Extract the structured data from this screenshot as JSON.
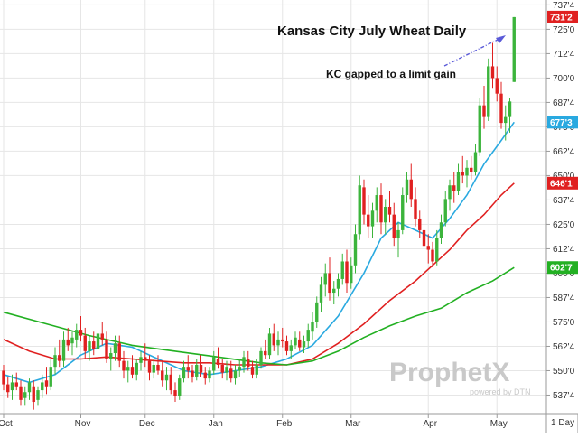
{
  "chart_data": {
    "type": "candlestick",
    "title": "Kansas City July Wheat Daily",
    "annotation": "KC gapped to a limit gain",
    "interval_label": "1 Day",
    "brand": {
      "name": "ProphetX",
      "sub": "powered by DTN"
    },
    "y_range": [
      528,
      740
    ],
    "y_ticks": [
      {
        "value": 737.5,
        "label": "737'4"
      },
      {
        "value": 725.0,
        "label": "725'0"
      },
      {
        "value": 712.5,
        "label": "712'4"
      },
      {
        "value": 700.0,
        "label": "700'0"
      },
      {
        "value": 687.5,
        "label": "687'4"
      },
      {
        "value": 675.0,
        "label": "675'0"
      },
      {
        "value": 662.5,
        "label": "662'4"
      },
      {
        "value": 650.0,
        "label": "650'0"
      },
      {
        "value": 637.5,
        "label": "637'4"
      },
      {
        "value": 625.0,
        "label": "625'0"
      },
      {
        "value": 612.5,
        "label": "612'4"
      },
      {
        "value": 600.0,
        "label": "600'0"
      },
      {
        "value": 587.5,
        "label": "587'4"
      },
      {
        "value": 575.0,
        "label": "575'0"
      },
      {
        "value": 562.5,
        "label": "562'4"
      },
      {
        "value": 550.0,
        "label": "550'0"
      },
      {
        "value": 537.5,
        "label": "537'4"
      }
    ],
    "month_ticks": [
      {
        "label": "Oct",
        "bar": 0
      },
      {
        "label": "Nov",
        "bar": 18
      },
      {
        "label": "Dec",
        "bar": 33
      },
      {
        "label": "Jan",
        "bar": 49
      },
      {
        "label": "Feb",
        "bar": 65
      },
      {
        "label": "Mar",
        "bar": 81
      },
      {
        "label": "Apr",
        "bar": 99
      },
      {
        "label": "May",
        "bar": 115
      }
    ],
    "price_tags": [
      {
        "label": "731'2",
        "value": 731.25,
        "color": "#e02020"
      },
      {
        "label": "677'3",
        "value": 677.375,
        "color": "#29a9e0"
      },
      {
        "label": "646'1",
        "value": 646.125,
        "color": "#e02020"
      },
      {
        "label": "602'7",
        "value": 602.875,
        "color": "#22b022"
      }
    ],
    "colors": {
      "up": "#3cb43c",
      "down": "#e02020",
      "ma_fast": "#29a9e0",
      "ma_mid": "#e02020",
      "ma_slow": "#22b022",
      "grid": "#e6e6e6"
    },
    "series": [
      {
        "name": "Daily OHLC",
        "type": "candlestick",
        "values": [
          [
            550,
            553,
            540,
            543
          ],
          [
            543,
            547,
            536,
            539
          ],
          [
            540,
            548,
            535,
            544
          ],
          [
            544,
            549,
            540,
            542
          ],
          [
            542,
            545,
            532,
            535
          ],
          [
            536,
            542,
            532,
            539
          ],
          [
            539,
            546,
            535,
            544
          ],
          [
            542,
            545,
            530,
            534
          ],
          [
            535,
            542,
            532,
            540
          ],
          [
            540,
            548,
            536,
            544
          ],
          [
            545,
            552,
            538,
            542
          ],
          [
            542,
            556,
            540,
            552
          ],
          [
            552,
            562,
            548,
            558
          ],
          [
            558,
            566,
            552,
            555
          ],
          [
            555,
            570,
            552,
            566
          ],
          [
            566,
            572,
            560,
            563
          ],
          [
            564,
            570,
            558,
            567
          ],
          [
            566,
            574,
            562,
            571
          ],
          [
            571,
            578,
            565,
            568
          ],
          [
            568,
            572,
            556,
            560
          ],
          [
            560,
            568,
            555,
            565
          ],
          [
            565,
            570,
            558,
            561
          ],
          [
            561,
            572,
            558,
            569
          ],
          [
            569,
            575,
            563,
            566
          ],
          [
            566,
            570,
            554,
            556
          ],
          [
            556,
            562,
            550,
            559
          ],
          [
            559,
            568,
            555,
            564
          ],
          [
            564,
            568,
            552,
            555
          ],
          [
            555,
            560,
            546,
            550
          ],
          [
            550,
            555,
            544,
            552
          ],
          [
            552,
            558,
            546,
            548
          ],
          [
            548,
            556,
            545,
            554
          ],
          [
            554,
            560,
            550,
            557
          ],
          [
            557,
            564,
            552,
            555
          ],
          [
            555,
            558,
            545,
            549
          ],
          [
            549,
            556,
            546,
            553
          ],
          [
            553,
            558,
            548,
            550
          ],
          [
            550,
            555,
            542,
            545
          ],
          [
            545,
            552,
            540,
            548
          ],
          [
            548,
            552,
            538,
            540
          ],
          [
            540,
            544,
            534,
            537
          ],
          [
            537,
            548,
            535,
            546
          ],
          [
            546,
            555,
            544,
            552
          ],
          [
            552,
            558,
            546,
            550
          ],
          [
            550,
            553,
            544,
            547
          ],
          [
            547,
            556,
            545,
            553
          ],
          [
            553,
            558,
            547,
            549
          ],
          [
            549,
            552,
            543,
            546
          ],
          [
            546,
            552,
            544,
            550
          ],
          [
            550,
            560,
            548,
            557
          ],
          [
            556,
            562,
            551,
            553
          ],
          [
            553,
            556,
            546,
            549
          ],
          [
            549,
            555,
            545,
            552
          ],
          [
            551,
            555,
            544,
            546
          ],
          [
            546,
            553,
            543,
            550
          ],
          [
            550,
            556,
            547,
            552
          ],
          [
            552,
            560,
            549,
            557
          ],
          [
            556,
            560,
            550,
            552
          ],
          [
            552,
            555,
            546,
            548
          ],
          [
            548,
            556,
            546,
            553
          ],
          [
            553,
            562,
            551,
            560
          ],
          [
            560,
            566,
            556,
            558
          ],
          [
            558,
            572,
            556,
            569
          ],
          [
            569,
            574,
            560,
            563
          ],
          [
            563,
            570,
            558,
            566
          ],
          [
            566,
            572,
            562,
            565
          ],
          [
            565,
            568,
            558,
            560
          ],
          [
            560,
            566,
            556,
            563
          ],
          [
            563,
            570,
            561,
            567
          ],
          [
            566,
            570,
            560,
            562
          ],
          [
            562,
            568,
            559,
            565
          ],
          [
            565,
            574,
            562,
            571
          ],
          [
            570,
            580,
            566,
            575
          ],
          [
            575,
            588,
            572,
            585
          ],
          [
            585,
            598,
            580,
            594
          ],
          [
            594,
            605,
            588,
            600
          ],
          [
            600,
            608,
            586,
            590
          ],
          [
            590,
            596,
            584,
            592
          ],
          [
            592,
            600,
            588,
            597
          ],
          [
            597,
            610,
            594,
            606
          ],
          [
            606,
            612,
            590,
            595
          ],
          [
            595,
            608,
            592,
            604
          ],
          [
            604,
            625,
            600,
            620
          ],
          [
            620,
            650,
            617,
            645
          ],
          [
            644,
            648,
            625,
            630
          ],
          [
            630,
            640,
            618,
            624
          ],
          [
            624,
            636,
            618,
            632
          ],
          [
            632,
            644,
            626,
            640
          ],
          [
            640,
            646,
            620,
            626
          ],
          [
            626,
            638,
            620,
            634
          ],
          [
            634,
            642,
            626,
            630
          ],
          [
            630,
            636,
            614,
            618
          ],
          [
            618,
            626,
            608,
            622
          ],
          [
            622,
            644,
            620,
            640
          ],
          [
            640,
            652,
            636,
            648
          ],
          [
            648,
            656,
            634,
            638
          ],
          [
            638,
            644,
            624,
            628
          ],
          [
            628,
            632,
            618,
            622
          ],
          [
            622,
            626,
            610,
            614
          ],
          [
            614,
            620,
            605,
            612
          ],
          [
            612,
            616,
            603,
            606
          ],
          [
            606,
            622,
            604,
            618
          ],
          [
            618,
            630,
            615,
            626
          ],
          [
            626,
            642,
            624,
            638
          ],
          [
            638,
            648,
            632,
            645
          ],
          [
            645,
            652,
            636,
            642
          ],
          [
            642,
            656,
            640,
            652
          ],
          [
            652,
            660,
            646,
            650
          ],
          [
            650,
            658,
            644,
            654
          ],
          [
            654,
            660,
            648,
            652
          ],
          [
            652,
            666,
            650,
            662
          ],
          [
            662,
            690,
            660,
            686
          ],
          [
            686,
            696,
            674,
            680
          ],
          [
            680,
            710,
            678,
            706
          ],
          [
            706,
            718,
            695,
            700
          ],
          [
            700,
            706,
            688,
            692
          ],
          [
            692,
            698,
            674,
            677
          ],
          [
            677,
            686,
            668,
            680
          ],
          [
            680,
            690,
            672,
            688
          ],
          [
            698,
            731.25,
            698,
            731.25
          ]
        ]
      },
      {
        "name": "Short average",
        "type": "line",
        "values": [
          [
            0,
            548
          ],
          [
            6,
            544
          ],
          [
            12,
            548
          ],
          [
            18,
            558
          ],
          [
            24,
            564
          ],
          [
            30,
            562
          ],
          [
            36,
            556
          ],
          [
            42,
            550
          ],
          [
            48,
            548
          ],
          [
            54,
            550
          ],
          [
            60,
            552
          ],
          [
            66,
            556
          ],
          [
            72,
            563
          ],
          [
            78,
            578
          ],
          [
            84,
            600
          ],
          [
            88,
            618
          ],
          [
            92,
            626
          ],
          [
            96,
            622
          ],
          [
            100,
            618
          ],
          [
            104,
            628
          ],
          [
            108,
            640
          ],
          [
            112,
            656
          ],
          [
            116,
            668
          ],
          [
            119,
            677.375
          ]
        ]
      },
      {
        "name": "Medium average",
        "type": "line",
        "values": [
          [
            0,
            566
          ],
          [
            6,
            560
          ],
          [
            12,
            556
          ],
          [
            18,
            556
          ],
          [
            24,
            557
          ],
          [
            30,
            556
          ],
          [
            36,
            555
          ],
          [
            42,
            554
          ],
          [
            48,
            554
          ],
          [
            54,
            553
          ],
          [
            60,
            553
          ],
          [
            66,
            553
          ],
          [
            72,
            556
          ],
          [
            78,
            564
          ],
          [
            84,
            574
          ],
          [
            90,
            586
          ],
          [
            96,
            596
          ],
          [
            100,
            604
          ],
          [
            104,
            612
          ],
          [
            108,
            622
          ],
          [
            112,
            630
          ],
          [
            116,
            640
          ],
          [
            119,
            646.125
          ]
        ]
      },
      {
        "name": "Long average",
        "type": "line",
        "values": [
          [
            0,
            580
          ],
          [
            10,
            574
          ],
          [
            20,
            568
          ],
          [
            30,
            563
          ],
          [
            40,
            560
          ],
          [
            50,
            557
          ],
          [
            60,
            554
          ],
          [
            66,
            553
          ],
          [
            72,
            555
          ],
          [
            78,
            560
          ],
          [
            84,
            567
          ],
          [
            90,
            573
          ],
          [
            96,
            578
          ],
          [
            102,
            582
          ],
          [
            108,
            590
          ],
          [
            114,
            596
          ],
          [
            119,
            602.875
          ]
        ]
      }
    ]
  }
}
